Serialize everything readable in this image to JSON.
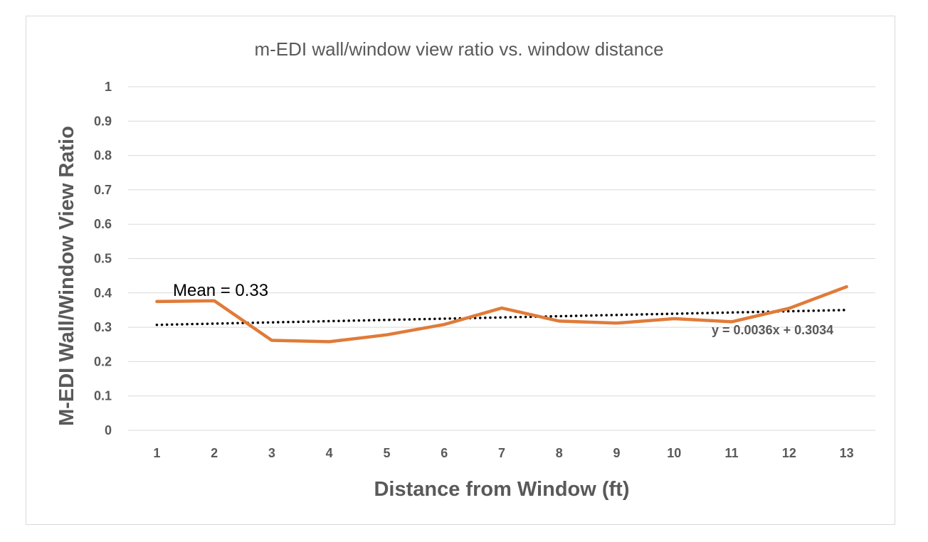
{
  "chart_data": {
    "type": "line",
    "title": "m-EDI wall/window view ratio vs. window distance",
    "xlabel": "Distance from Window (ft)",
    "ylabel": "M-EDI Wall/Window View Ratio",
    "categories": [
      "1",
      "2",
      "3",
      "4",
      "5",
      "6",
      "7",
      "8",
      "9",
      "10",
      "11",
      "12",
      "13"
    ],
    "x": [
      1,
      2,
      3,
      4,
      5,
      6,
      7,
      8,
      9,
      10,
      11,
      12,
      13
    ],
    "series": [
      {
        "values": [
          0.375,
          0.377,
          0.262,
          0.258,
          0.278,
          0.308,
          0.356,
          0.318,
          0.312,
          0.325,
          0.316,
          0.355,
          0.418
        ]
      }
    ],
    "trendline": {
      "type": "linear",
      "slope": 0.0036,
      "intercept": 0.3034,
      "label": "y = 0.0036x + 0.3034"
    },
    "annotation": "Mean = 0.33",
    "ylim": [
      0,
      1
    ],
    "yticks": [
      "0",
      "0.1",
      "0.2",
      "0.3",
      "0.4",
      "0.5",
      "0.6",
      "0.7",
      "0.8",
      "0.9",
      "1"
    ],
    "grid": true,
    "legend": "none",
    "colors": {
      "series": "#E07B39",
      "trend": "#000000",
      "grid": "#d9d9d9",
      "text": "#595959"
    }
  }
}
